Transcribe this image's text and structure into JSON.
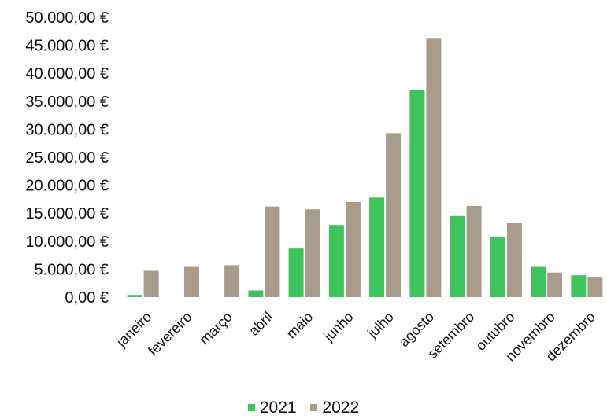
{
  "chart_data": {
    "type": "bar",
    "categories": [
      "janeiro",
      "fevereiro",
      "março",
      "abril",
      "maio",
      "junho",
      "julho",
      "agosto",
      "setembro",
      "outubro",
      "novembro",
      "dezembro"
    ],
    "series": [
      {
        "name": "2021",
        "color": "#3dc45a",
        "values": [
          400,
          0,
          0,
          1200,
          8700,
          12900,
          17800,
          37000,
          14500,
          10700,
          5400,
          3900
        ]
      },
      {
        "name": "2022",
        "color": "#a89b8c",
        "values": [
          4700,
          5400,
          5700,
          16200,
          15700,
          17000,
          29300,
          46300,
          16300,
          13200,
          4400,
          3500
        ]
      }
    ],
    "yticks": [
      "0,00 €",
      "5.000,00 €",
      "10.000,00 €",
      "15.000,00 €",
      "20.000,00 €",
      "25.000,00 €",
      "30.000,00 €",
      "35.000,00 €",
      "40.000,00 €",
      "45.000,00 €",
      "50.000,00 €"
    ],
    "ylim": [
      0,
      50000
    ],
    "ytick_step": 5000,
    "grid": false,
    "legend_position": "bottom"
  }
}
